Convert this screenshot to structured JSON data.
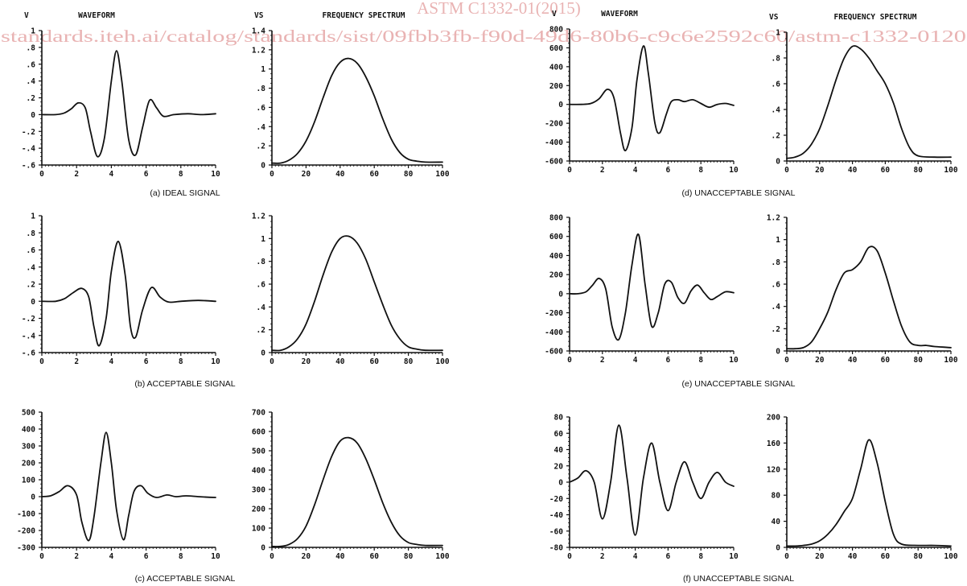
{
  "watermark": {
    "line1": "ASTM C1332-01(2015)",
    "line2": "standards.iteh.ai/catalog/standards/sist/09fbb3fb-f90d-49d6-80b6-c9c6e2592c60/astm-c1332-0120"
  },
  "captions": {
    "a": "(a) IDEAL SIGNAL",
    "b": "(b) ACCEPTABLE SIGNAL",
    "c": "(c) ACCEPTABLE SIGNAL",
    "d": "(d) UNACCEPTABLE SIGNAL",
    "e": "(e) UNACCEPTABLE SIGNAL",
    "f": "(f) UNACCEPTABLE SIGNAL"
  },
  "chart_data": [
    {
      "id": "a-waveform",
      "type": "line",
      "title": "WAVEFORM",
      "ylabel": "V",
      "xlim": [
        0,
        10
      ],
      "ylim": [
        -0.6,
        1
      ],
      "xticks": [
        "0",
        "2",
        "4",
        "6",
        "8",
        "10"
      ],
      "yticks": [
        "-.6",
        "-.4",
        "-.2",
        "0",
        ".2",
        ".4",
        ".6",
        ".8",
        "1"
      ],
      "x": [
        0,
        0.8,
        1.3,
        1.7,
        2.1,
        2.5,
        2.8,
        3.2,
        3.6,
        4.0,
        4.3,
        4.6,
        5.0,
        5.4,
        5.8,
        6.2,
        6.6,
        7.0,
        7.6,
        8.4,
        9.2,
        10
      ],
      "y": [
        0,
        0,
        0.02,
        0.07,
        0.14,
        0.08,
        -0.2,
        -0.5,
        -0.28,
        0.4,
        0.76,
        0.4,
        -0.3,
        -0.48,
        -0.15,
        0.17,
        0.08,
        -0.02,
        0,
        0.01,
        0,
        0.01
      ]
    },
    {
      "id": "a-spectrum",
      "type": "line",
      "title": "FREQUENCY SPECTRUM",
      "ylabel": "VS",
      "xlim": [
        0,
        100
      ],
      "ylim": [
        0,
        1.4
      ],
      "xticks": [
        "0",
        "20",
        "40",
        "60",
        "80",
        "100"
      ],
      "yticks": [
        "0",
        ".2",
        ".4",
        ".6",
        ".8",
        "1",
        "1.2",
        "1.4"
      ],
      "x": [
        0,
        5,
        10,
        15,
        20,
        25,
        30,
        35,
        40,
        45,
        50,
        55,
        60,
        65,
        70,
        75,
        80,
        85,
        90,
        100
      ],
      "y": [
        0.02,
        0.02,
        0.05,
        0.12,
        0.25,
        0.45,
        0.7,
        0.93,
        1.07,
        1.11,
        1.06,
        0.92,
        0.72,
        0.48,
        0.27,
        0.13,
        0.06,
        0.04,
        0.03,
        0.03
      ]
    },
    {
      "id": "b-waveform",
      "type": "line",
      "xlim": [
        0,
        10
      ],
      "ylim": [
        -0.6,
        1
      ],
      "xticks": [
        "0",
        "2",
        "4",
        "6",
        "8",
        "10"
      ],
      "yticks": [
        "-.6",
        "-.4",
        "-.2",
        "0",
        ".2",
        ".4",
        ".6",
        ".8",
        "1"
      ],
      "x": [
        0,
        0.8,
        1.3,
        1.8,
        2.3,
        2.7,
        3.0,
        3.3,
        3.7,
        4.0,
        4.4,
        4.8,
        5.1,
        5.4,
        5.8,
        6.3,
        6.8,
        7.3,
        8,
        9,
        10
      ],
      "y": [
        0,
        0,
        0.03,
        0.1,
        0.15,
        0.05,
        -0.3,
        -0.52,
        -0.2,
        0.35,
        0.7,
        0.3,
        -0.3,
        -0.42,
        -0.1,
        0.16,
        0.05,
        -0.01,
        0,
        0.01,
        0
      ]
    },
    {
      "id": "b-spectrum",
      "type": "line",
      "xlim": [
        0,
        100
      ],
      "ylim": [
        0,
        1.2
      ],
      "xticks": [
        "0",
        "20",
        "40",
        "60",
        "80",
        "100"
      ],
      "yticks": [
        "0",
        ".2",
        ".4",
        ".6",
        ".8",
        "1",
        "1.2"
      ],
      "x": [
        0,
        5,
        10,
        15,
        20,
        25,
        30,
        35,
        40,
        45,
        50,
        55,
        60,
        65,
        70,
        75,
        80,
        85,
        90,
        100
      ],
      "y": [
        0.02,
        0.02,
        0.05,
        0.12,
        0.25,
        0.45,
        0.68,
        0.88,
        1.0,
        1.02,
        0.96,
        0.82,
        0.62,
        0.42,
        0.24,
        0.12,
        0.05,
        0.03,
        0.02,
        0.02
      ]
    },
    {
      "id": "c-waveform",
      "type": "line",
      "xlim": [
        0,
        10
      ],
      "ylim": [
        -300,
        500
      ],
      "xticks": [
        "0",
        "2",
        "4",
        "6",
        "8",
        "10"
      ],
      "yticks": [
        "-300",
        "-200",
        "-100",
        "0",
        "100",
        "200",
        "300",
        "400",
        "500"
      ],
      "x": [
        0,
        0.5,
        1.0,
        1.5,
        2.0,
        2.3,
        2.7,
        3.0,
        3.4,
        3.7,
        4.0,
        4.3,
        4.7,
        5.0,
        5.3,
        5.7,
        6.1,
        6.6,
        7.2,
        7.7,
        8.3,
        9,
        10
      ],
      "y": [
        0,
        5,
        30,
        65,
        10,
        -150,
        -260,
        -120,
        200,
        380,
        200,
        -80,
        -255,
        -110,
        30,
        65,
        20,
        -5,
        10,
        0,
        5,
        0,
        -5
      ]
    },
    {
      "id": "c-spectrum",
      "type": "line",
      "xlim": [
        0,
        100
      ],
      "ylim": [
        0,
        700
      ],
      "xticks": [
        "0",
        "20",
        "40",
        "60",
        "80",
        "100"
      ],
      "yticks": [
        "0",
        "100",
        "200",
        "300",
        "400",
        "500",
        "600",
        "700"
      ],
      "x": [
        0,
        5,
        10,
        15,
        20,
        25,
        30,
        35,
        40,
        45,
        50,
        55,
        60,
        65,
        70,
        75,
        80,
        85,
        90,
        100
      ],
      "y": [
        5,
        5,
        15,
        45,
        110,
        220,
        350,
        470,
        550,
        568,
        540,
        460,
        350,
        230,
        130,
        60,
        25,
        15,
        10,
        10
      ]
    },
    {
      "id": "d-waveform",
      "type": "line",
      "title": "WAVEFORM",
      "ylabel": "V",
      "xlim": [
        0,
        10
      ],
      "ylim": [
        -600,
        800
      ],
      "xticks": [
        "0",
        "2",
        "4",
        "6",
        "8",
        "10"
      ],
      "yticks": [
        "-600",
        "-400",
        "-200",
        "0",
        "200",
        "400",
        "600",
        "800"
      ],
      "x": [
        0,
        0.7,
        1.3,
        1.8,
        2.3,
        2.7,
        3.1,
        3.4,
        3.8,
        4.1,
        4.5,
        4.8,
        5.2,
        5.5,
        5.9,
        6.2,
        6.6,
        7.0,
        7.5,
        8.0,
        8.5,
        9.0,
        9.5,
        10
      ],
      "y": [
        0,
        0,
        10,
        60,
        160,
        70,
        -300,
        -490,
        -250,
        250,
        620,
        330,
        -200,
        -300,
        -100,
        30,
        50,
        30,
        50,
        10,
        -30,
        0,
        10,
        -10
      ]
    },
    {
      "id": "d-spectrum",
      "type": "line",
      "title": "FREQUENCY SPECTRUM",
      "ylabel": "VS",
      "xlim": [
        0,
        100
      ],
      "ylim": [
        0,
        1
      ],
      "xticks": [
        "0",
        "20",
        "40",
        "60",
        "80",
        "100"
      ],
      "yticks": [
        "0",
        ".2",
        ".4",
        ".6",
        ".8",
        "1"
      ],
      "x": [
        0,
        5,
        10,
        15,
        20,
        25,
        30,
        35,
        40,
        45,
        50,
        55,
        60,
        65,
        70,
        75,
        80,
        90,
        100
      ],
      "y": [
        0.02,
        0.03,
        0.06,
        0.13,
        0.25,
        0.43,
        0.63,
        0.8,
        0.89,
        0.87,
        0.8,
        0.7,
        0.6,
        0.45,
        0.25,
        0.1,
        0.04,
        0.03,
        0.03
      ]
    },
    {
      "id": "e-waveform",
      "type": "line",
      "xlim": [
        0,
        10
      ],
      "ylim": [
        -600,
        800
      ],
      "xticks": [
        "0",
        "2",
        "4",
        "6",
        "8",
        "10"
      ],
      "yticks": [
        "-600",
        "-400",
        "-200",
        "0",
        "200",
        "400",
        "600",
        "800"
      ],
      "x": [
        0,
        0.5,
        1.0,
        1.4,
        1.8,
        2.2,
        2.6,
        3.0,
        3.4,
        3.8,
        4.2,
        4.6,
        5.0,
        5.4,
        5.8,
        6.2,
        6.6,
        7.0,
        7.4,
        7.8,
        8.2,
        8.6,
        9.0,
        9.5,
        10
      ],
      "y": [
        0,
        0,
        20,
        90,
        160,
        50,
        -350,
        -480,
        -200,
        300,
        620,
        100,
        -340,
        -200,
        100,
        120,
        -40,
        -100,
        30,
        90,
        10,
        -60,
        -30,
        20,
        10
      ]
    },
    {
      "id": "e-spectrum",
      "type": "line",
      "xlim": [
        0,
        100
      ],
      "ylim": [
        0,
        1.2
      ],
      "xticks": [
        "0",
        "20",
        "40",
        "60",
        "80",
        "100"
      ],
      "yticks": [
        "0",
        ".2",
        ".4",
        ".6",
        ".8",
        "1",
        "1.2"
      ],
      "x": [
        0,
        5,
        10,
        15,
        20,
        25,
        30,
        35,
        40,
        45,
        50,
        55,
        60,
        65,
        70,
        75,
        80,
        85,
        90,
        100
      ],
      "y": [
        0.02,
        0.02,
        0.03,
        0.08,
        0.2,
        0.35,
        0.55,
        0.7,
        0.73,
        0.8,
        0.93,
        0.9,
        0.7,
        0.45,
        0.22,
        0.08,
        0.05,
        0.05,
        0.04,
        0.03
      ]
    },
    {
      "id": "f-waveform",
      "type": "line",
      "xlim": [
        0,
        10
      ],
      "ylim": [
        -80,
        80
      ],
      "xticks": [
        "0",
        "2",
        "4",
        "6",
        "8",
        "10"
      ],
      "yticks": [
        "-80",
        "-60",
        "-40",
        "-20",
        "0",
        "20",
        "40",
        "60",
        "80"
      ],
      "x": [
        0,
        0.5,
        1.0,
        1.5,
        2.0,
        2.5,
        3.0,
        3.5,
        4.0,
        4.5,
        5.0,
        5.5,
        6.0,
        6.5,
        7.0,
        7.5,
        8.0,
        8.5,
        9.0,
        9.5,
        10
      ],
      "y": [
        0,
        5,
        14,
        0,
        -45,
        0,
        70,
        5,
        -65,
        5,
        48,
        0,
        -35,
        0,
        25,
        0,
        -20,
        0,
        12,
        0,
        -5
      ]
    },
    {
      "id": "f-spectrum",
      "type": "line",
      "xlim": [
        0,
        100
      ],
      "ylim": [
        0,
        200
      ],
      "xticks": [
        "0",
        "20",
        "40",
        "60",
        "80",
        "100"
      ],
      "yticks": [
        "0",
        "40",
        "80",
        "120",
        "160",
        "200"
      ],
      "x": [
        0,
        5,
        10,
        15,
        20,
        25,
        30,
        35,
        40,
        45,
        50,
        55,
        60,
        65,
        70,
        80,
        90,
        100
      ],
      "y": [
        2,
        2,
        3,
        5,
        10,
        20,
        35,
        55,
        75,
        120,
        165,
        130,
        70,
        20,
        5,
        3,
        3,
        2
      ]
    }
  ]
}
